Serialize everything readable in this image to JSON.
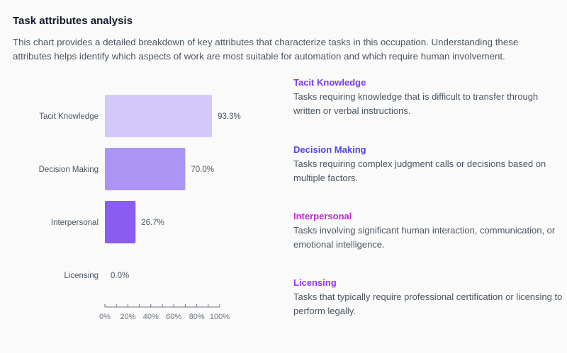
{
  "header": {
    "title": "Task attributes analysis",
    "description": "This chart provides a detailed breakdown of key attributes that characterize tasks in this occupation. Understanding these attributes helps identify which aspects of work are most suitable for automation and which require human involvement."
  },
  "chart_data": {
    "type": "bar",
    "orientation": "horizontal",
    "categories": [
      "Tacit Knowledge",
      "Decision Making",
      "Interpersonal",
      "Licensing"
    ],
    "values": [
      93.3,
      70.0,
      26.7,
      0.0
    ],
    "value_labels": [
      "93.3%",
      "70.0%",
      "26.7%",
      "0.0%"
    ],
    "bar_colors": [
      "#d4c8fb",
      "#ac94f4",
      "#8b5cf0",
      "#7c3aed"
    ],
    "xlim": [
      0,
      100
    ],
    "xticks": [
      0,
      20,
      40,
      60,
      80,
      100
    ],
    "xtick_labels": [
      "0%",
      "20%",
      "40%",
      "60%",
      "80%",
      "100%"
    ],
    "grid": false
  },
  "legend": {
    "items": [
      {
        "heading": "Tacit Knowledge",
        "color": "#7c3aed",
        "description": "Tasks requiring knowledge that is difficult to transfer through written or verbal instructions."
      },
      {
        "heading": "Decision Making",
        "color": "#4f46e5",
        "description": "Tasks requiring complex judgment calls or decisions based on multiple factors."
      },
      {
        "heading": "Interpersonal",
        "color": "#c026d3",
        "description": "Tasks involving significant human interaction, communication, or emotional intelligence."
      },
      {
        "heading": "Licensing",
        "color": "#9333ea",
        "description": "Tasks that typically require professional certification or licensing to perform legally."
      }
    ]
  }
}
